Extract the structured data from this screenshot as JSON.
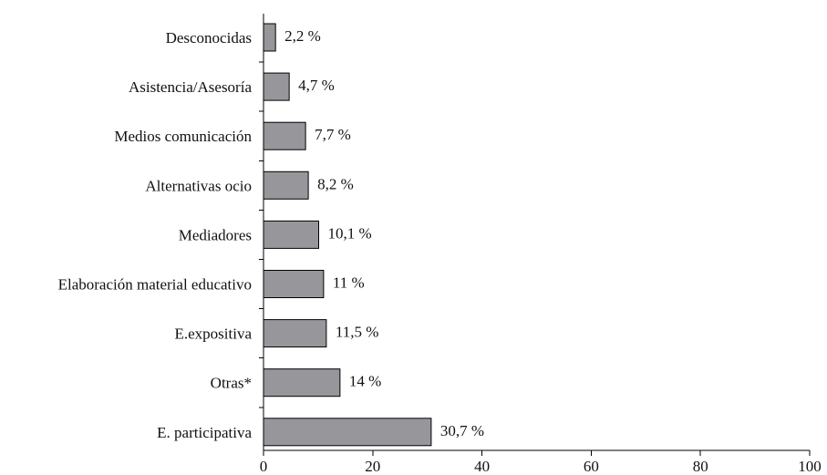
{
  "chart_data": {
    "type": "bar",
    "orientation": "horizontal",
    "categories": [
      "Desconocidas",
      "Asistencia/Asesoría",
      "Medios comunicación",
      "Alternativas ocio",
      "Mediadores",
      "Elaboración material educativo",
      "E.expositiva",
      "Otras*",
      "E. participativa"
    ],
    "values": [
      2.2,
      4.7,
      7.7,
      8.2,
      10.1,
      11,
      11.5,
      14,
      30.7
    ],
    "value_labels": [
      "2,2 %",
      "4,7 %",
      "7,7 %",
      "8,2 %",
      "10,1 %",
      "11 %",
      "11,5 %",
      "14 %",
      "30,7 %"
    ],
    "xlim": [
      0,
      100
    ],
    "xticks": [
      0,
      20,
      40,
      60,
      80,
      100
    ],
    "grid": false,
    "bar_color": "#97979b"
  }
}
